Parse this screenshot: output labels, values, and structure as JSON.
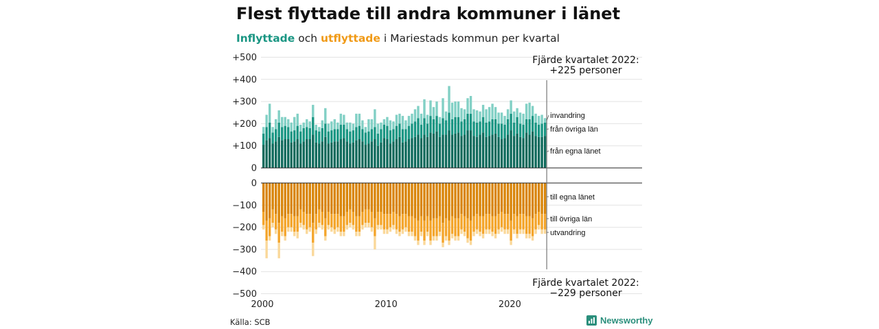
{
  "title": "Flest flyttade till andra kommuner i länet",
  "subtitle": {
    "in_word": "Inflyttade",
    "and_word": " och ",
    "out_word": "utflyttade",
    "rest": " i Mariestads kommun per kvartal"
  },
  "source": "Källa: SCB",
  "brand": "Newsworthy",
  "colors": {
    "in_egna": "#0f6a5c",
    "in_ovriga": "#1a9683",
    "in_invandring": "#82d0c5",
    "out_egna": "#d98509",
    "out_ovriga": "#f4a52b",
    "out_utvandring": "#fad89a",
    "brand": "#2b8f7c"
  },
  "annotations": {
    "top_line1": "Fjärde kvartalet 2022:",
    "top_line2": "+225 personer",
    "bottom_line1": "Fjärde kvartalet 2022:",
    "bottom_line2": "−229 personer"
  },
  "chart_data": {
    "type": "bar",
    "stacked": true,
    "diverging": true,
    "x_start": "2000 Q1",
    "x_end": "2022 Q4",
    "x_tick_labels": [
      "2000",
      "2010",
      "2020"
    ],
    "y_tick_labels": [
      "+500",
      "+400",
      "+300",
      "+200",
      "+100",
      "0",
      "0",
      "−100",
      "−200",
      "−300",
      "−400",
      "−500"
    ],
    "ylim_in": [
      0,
      500
    ],
    "ylim_out": [
      -500,
      0
    ],
    "series_in": [
      {
        "name": "från egna länet",
        "values": [
          105,
          125,
          135,
          110,
          120,
          140,
          125,
          130,
          130,
          115,
          120,
          130,
          110,
          120,
          130,
          130,
          150,
          115,
          110,
          120,
          140,
          110,
          115,
          120,
          120,
          130,
          135,
          120,
          110,
          115,
          125,
          130,
          120,
          105,
          110,
          120,
          130,
          100,
          115,
          135,
          130,
          110,
          120,
          130,
          140,
          115,
          120,
          130,
          135,
          140,
          150,
          135,
          150,
          140,
          160,
          155,
          165,
          140,
          150,
          150,
          170,
          150,
          155,
          160,
          145,
          150,
          170,
          170,
          145,
          140,
          150,
          160,
          140,
          145,
          150,
          155,
          140,
          130,
          135,
          150,
          170,
          145,
          155,
          140,
          135,
          160,
          150,
          165,
          145,
          140,
          140,
          145
        ]
      },
      {
        "name": "från övriga län",
        "values": [
          50,
          60,
          70,
          50,
          55,
          65,
          60,
          60,
          55,
          50,
          50,
          60,
          55,
          60,
          55,
          50,
          80,
          55,
          55,
          60,
          60,
          55,
          55,
          55,
          55,
          65,
          60,
          55,
          55,
          55,
          60,
          60,
          55,
          55,
          55,
          55,
          55,
          55,
          60,
          60,
          60,
          60,
          55,
          60,
          60,
          60,
          55,
          60,
          65,
          70,
          75,
          60,
          75,
          60,
          75,
          65,
          70,
          60,
          75,
          65,
          80,
          70,
          75,
          70,
          65,
          70,
          75,
          75,
          65,
          65,
          60,
          70,
          65,
          65,
          70,
          65,
          60,
          70,
          60,
          70,
          75,
          60,
          75,
          60,
          60,
          60,
          70,
          70,
          60,
          55,
          60,
          60
        ]
      },
      {
        "name": "invandring",
        "values": [
          30,
          55,
          85,
          25,
          45,
          55,
          45,
          40,
          35,
          40,
          60,
          55,
          30,
          25,
          35,
          30,
          55,
          25,
          20,
          35,
          70,
          35,
          40,
          45,
          30,
          50,
          45,
          30,
          40,
          30,
          60,
          55,
          40,
          25,
          55,
          45,
          80,
          45,
          30,
          25,
          40,
          45,
          35,
          50,
          45,
          60,
          40,
          45,
          45,
          55,
          55,
          50,
          85,
          40,
          70,
          55,
          65,
          30,
          90,
          40,
          120,
          75,
          70,
          70,
          60,
          45,
          70,
          80,
          55,
          55,
          45,
          55,
          60,
          65,
          70,
          55,
          50,
          50,
          40,
          45,
          60,
          50,
          40,
          50,
          50,
          70,
          75,
          45,
          40,
          40,
          40,
          20
        ]
      }
    ],
    "series_out": [
      {
        "name": "till egna länet",
        "values": [
          -130,
          -170,
          -160,
          -120,
          -140,
          -180,
          -150,
          -160,
          -140,
          -140,
          -150,
          -150,
          -120,
          -130,
          -140,
          -140,
          -180,
          -140,
          -120,
          -130,
          -160,
          -130,
          -140,
          -140,
          -140,
          -150,
          -150,
          -130,
          -120,
          -130,
          -150,
          -150,
          -130,
          -120,
          -120,
          -130,
          -160,
          -130,
          -130,
          -140,
          -140,
          -140,
          -130,
          -140,
          -150,
          -140,
          -140,
          -150,
          -150,
          -160,
          -170,
          -150,
          -170,
          -150,
          -170,
          -160,
          -160,
          -150,
          -180,
          -160,
          -170,
          -150,
          -160,
          -160,
          -140,
          -150,
          -160,
          -170,
          -150,
          -140,
          -150,
          -150,
          -140,
          -140,
          -150,
          -150,
          -140,
          -130,
          -140,
          -140,
          -170,
          -140,
          -150,
          -140,
          -140,
          -150,
          -150,
          -160,
          -140,
          -130,
          -140,
          -140
        ]
      },
      {
        "name": "till övriga län",
        "values": [
          -60,
          -90,
          -80,
          -60,
          -70,
          -90,
          -70,
          -80,
          -60,
          -60,
          -70,
          -70,
          -60,
          -60,
          -70,
          -60,
          -90,
          -70,
          -60,
          -60,
          -80,
          -60,
          -60,
          -70,
          -60,
          -70,
          -70,
          -60,
          -60,
          -60,
          -70,
          -70,
          -60,
          -60,
          -60,
          -70,
          -80,
          -60,
          -60,
          -70,
          -70,
          -60,
          -60,
          -70,
          -70,
          -70,
          -60,
          -70,
          -70,
          -80,
          -90,
          -70,
          -90,
          -70,
          -90,
          -80,
          -80,
          -70,
          -90,
          -80,
          -90,
          -80,
          -80,
          -80,
          -70,
          -70,
          -90,
          -90,
          -70,
          -70,
          -70,
          -80,
          -70,
          -70,
          -70,
          -80,
          -70,
          -70,
          -70,
          -70,
          -90,
          -70,
          -80,
          -70,
          -70,
          -80,
          -80,
          -80,
          -70,
          -60,
          -70,
          -70
        ]
      },
      {
        "name": "utvandring",
        "values": [
          -20,
          -80,
          -20,
          -20,
          -20,
          -70,
          -20,
          -20,
          -20,
          -20,
          -20,
          -30,
          -20,
          -20,
          -20,
          -20,
          -60,
          -20,
          -20,
          -20,
          -20,
          -20,
          -20,
          -20,
          -20,
          -20,
          -20,
          -20,
          -20,
          -20,
          -20,
          -20,
          -20,
          -20,
          -20,
          -20,
          -60,
          -20,
          -20,
          -20,
          -20,
          -20,
          -20,
          -20,
          -20,
          -20,
          -20,
          -20,
          -20,
          -20,
          -20,
          -20,
          -20,
          -20,
          -20,
          -20,
          -20,
          -20,
          -20,
          -20,
          -20,
          -20,
          -20,
          -20,
          -20,
          -20,
          -20,
          -20,
          -20,
          -20,
          -20,
          -20,
          -20,
          -20,
          -20,
          -20,
          -20,
          -20,
          -20,
          -20,
          -20,
          -20,
          -20,
          -20,
          -20,
          -20,
          -20,
          -20,
          -20,
          -20,
          -20,
          -19
        ]
      }
    ],
    "legend_in": [
      "invandring",
      "från övriga län",
      "från egna länet"
    ],
    "legend_out": [
      "till egna länet",
      "till övriga län",
      "utvandring"
    ]
  }
}
